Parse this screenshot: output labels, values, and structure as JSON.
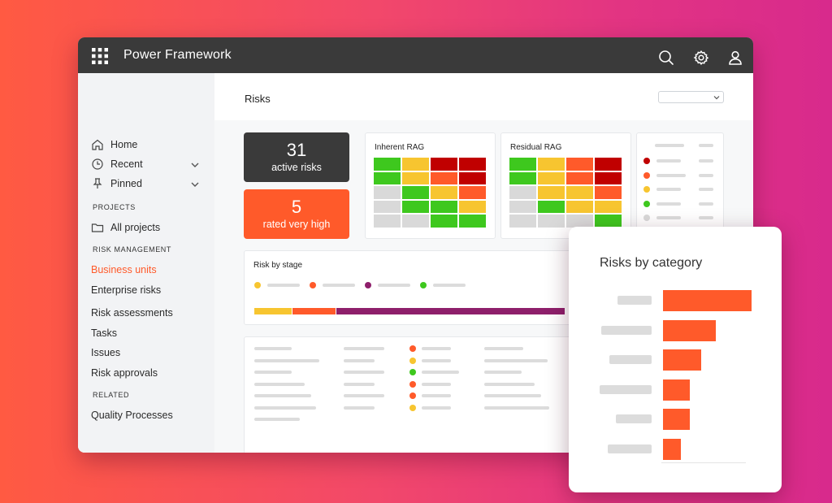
{
  "app": {
    "title": "Power Framework"
  },
  "colors": {
    "accent": "#ff5a2a",
    "topbar": "#3a3a3a",
    "dark_stat": "#3a3a3a"
  },
  "sidebar": {
    "items": [
      {
        "label": "Home",
        "icon": "home-icon"
      },
      {
        "label": "Recent",
        "icon": "clock-icon",
        "expandable": true
      },
      {
        "label": "Pinned",
        "icon": "pin-icon",
        "expandable": true
      }
    ],
    "sections": {
      "projects": "PROJECTS",
      "risk_management": "RISK MANAGEMENT",
      "related": "RELATED"
    },
    "projects_item": {
      "label": "All projects",
      "icon": "folder-icon"
    },
    "risk_items": [
      "Business units",
      "Enterprise risks",
      "Risk assessments",
      "Tasks",
      "Issues",
      "Risk approvals"
    ],
    "active_item": "Business units",
    "related_items": [
      "Quality Processes"
    ]
  },
  "main": {
    "title": "Risks",
    "stats": [
      {
        "value": "31",
        "label": "active risks",
        "color": "#3a3a3a"
      },
      {
        "value": "5",
        "label": "rated very high",
        "color": "#ff5a2a"
      }
    ],
    "inherent_rag": {
      "title": "Inherent RAG",
      "cells": [
        [
          "#3ec81e",
          "#f7c530",
          "#c00000",
          "#c00000"
        ],
        [
          "#3ec81e",
          "#f7c530",
          "#ff5a2a",
          "#c00000"
        ],
        [
          "#d9d9d9",
          "#3ec81e",
          "#f7c530",
          "#ff5a2a"
        ],
        [
          "#d9d9d9",
          "#3ec81e",
          "#3ec81e",
          "#f7c530"
        ],
        [
          "#d9d9d9",
          "#d9d9d9",
          "#3ec81e",
          "#3ec81e"
        ]
      ]
    },
    "residual_rag": {
      "title": "Residual RAG",
      "cells": [
        [
          "#3ec81e",
          "#f7c530",
          "#ff5a2a",
          "#c00000"
        ],
        [
          "#3ec81e",
          "#f7c530",
          "#ff5a2a",
          "#c00000"
        ],
        [
          "#d9d9d9",
          "#f7c530",
          "#f7c530",
          "#ff5a2a"
        ],
        [
          "#d9d9d9",
          "#3ec81e",
          "#f7c530",
          "#f7c530"
        ],
        [
          "#d9d9d9",
          "#d9d9d9",
          "#d9d9d9",
          "#3ec81e"
        ]
      ]
    },
    "legend_dots": [
      "#c00000",
      "#ff5a2a",
      "#f7c530",
      "#3ec81e",
      "#d9d9d9"
    ],
    "risk_by_stage": {
      "title": "Risk by stage",
      "legend_colors": [
        "#f7c530",
        "#ff5a2a",
        "#8e1f6b",
        "#3ec81e"
      ],
      "segments": [
        {
          "color": "#f7c530",
          "fraction": 0.12
        },
        {
          "color": "#ff5a2a",
          "fraction": 0.14
        },
        {
          "color": "#8e1f6b",
          "fraction": 0.74
        }
      ]
    },
    "table_status_dots": [
      "#ff5a2a",
      "#f7c530",
      "#3ec81e",
      "#ff5a2a",
      "#ff5a2a",
      "#f7c530"
    ]
  },
  "popup": {
    "title": "Risks by category",
    "bar_values": [
      100,
      60,
      43,
      30,
      30,
      20
    ]
  }
}
